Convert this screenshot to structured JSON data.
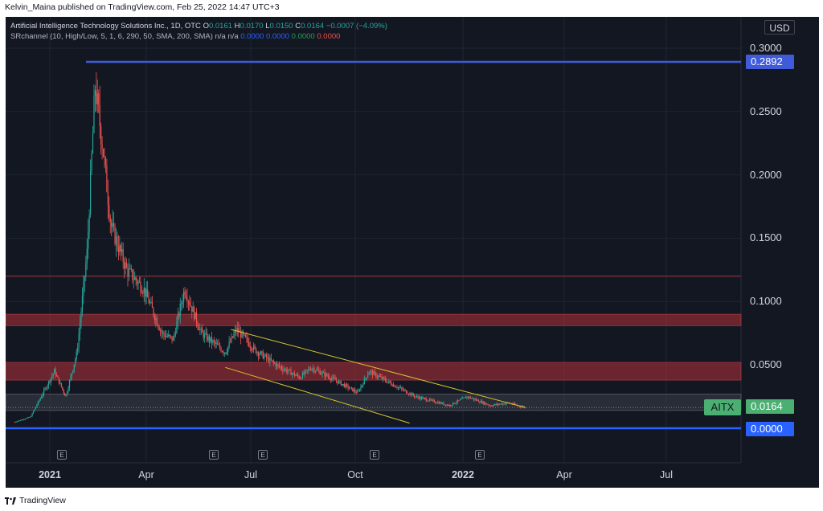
{
  "byline": "Kelvin_Maina published on TradingView.com, Feb 25, 2022 14:47 UTC+3",
  "legend": {
    "symbol": "Artificial Intelligence Technology Solutions Inc., 1D, OTC",
    "open_label": "O",
    "open": "0.0161",
    "high_label": "H",
    "high": "0.0170",
    "low_label": "L",
    "low": "0.0150",
    "close_label": "C",
    "close": "0.0164",
    "change": "−0.0007 (−4.09%)",
    "indicator": "SRchannel (10, High/Low, 5, 1, 6, 290, 50, SMA, 200, SMA)",
    "indicator_na1": "n/a",
    "indicator_na2": "n/a",
    "indicator_v1": "0.0000",
    "indicator_v2": "0.0000",
    "indicator_v3": "0.0000",
    "indicator_v4": "0.0000"
  },
  "currency": "USD",
  "ticker": "AITX",
  "price_labels": {
    "top_level": "0.2892",
    "last_price": "0.0164",
    "bottom_level": "0.0000"
  },
  "colors": {
    "background": "#131722",
    "up": "#26a69a",
    "down": "#ef5350",
    "level_line": "#3f5bd9",
    "zone_red": "#b2323a",
    "trend_line": "#d4c22c",
    "ticker_badge": "#4caf72"
  },
  "footer": {
    "brand": "TradingView",
    "logo_icon": "tradingview-logo-icon"
  },
  "chart_data": {
    "type": "candlestick",
    "title": "Artificial Intelligence Technology Solutions Inc., 1D, OTC",
    "ylabel": "USD",
    "ylim": [
      -0.02,
      0.31
    ],
    "y_ticks": [
      "0.3000",
      "0.2500",
      "0.2000",
      "0.1500",
      "0.1000",
      "0.0500"
    ],
    "x_ticks": [
      {
        "label": "2021",
        "bold": true
      },
      {
        "label": "Apr",
        "bold": false
      },
      {
        "label": "Jul",
        "bold": false
      },
      {
        "label": "Oct",
        "bold": false
      },
      {
        "label": "2022",
        "bold": true
      },
      {
        "label": "Apr",
        "bold": false
      },
      {
        "label": "Jul",
        "bold": false
      }
    ],
    "event_markers": [
      "E",
      "E",
      "E",
      "E",
      "E"
    ],
    "grid": true,
    "horizontal_levels": [
      0.2892,
      0.0
    ],
    "resistance_line": 0.12,
    "zones": [
      {
        "from": 0.081,
        "to": 0.09
      },
      {
        "from": 0.038,
        "to": 0.052
      },
      {
        "from": 0.014,
        "to": 0.027
      }
    ],
    "price_path": [
      {
        "date": "2020-12-01",
        "close": 0.005
      },
      {
        "date": "2020-12-15",
        "close": 0.009
      },
      {
        "date": "2021-01-05",
        "close": 0.045
      },
      {
        "date": "2021-01-15",
        "close": 0.025
      },
      {
        "date": "2021-01-25",
        "close": 0.06
      },
      {
        "date": "2021-02-03",
        "close": 0.14
      },
      {
        "date": "2021-02-10",
        "close": 0.27
      },
      {
        "date": "2021-02-17",
        "close": 0.22
      },
      {
        "date": "2021-02-24",
        "close": 0.16
      },
      {
        "date": "2021-03-10",
        "close": 0.125
      },
      {
        "date": "2021-03-25",
        "close": 0.11
      },
      {
        "date": "2021-04-10",
        "close": 0.075
      },
      {
        "date": "2021-04-20",
        "close": 0.07
      },
      {
        "date": "2021-04-30",
        "close": 0.11
      },
      {
        "date": "2021-05-15",
        "close": 0.075
      },
      {
        "date": "2021-06-05",
        "close": 0.06
      },
      {
        "date": "2021-06-15",
        "close": 0.078
      },
      {
        "date": "2021-07-01",
        "close": 0.062
      },
      {
        "date": "2021-07-20",
        "close": 0.05
      },
      {
        "date": "2021-08-10",
        "close": 0.04
      },
      {
        "date": "2021-08-20",
        "close": 0.048
      },
      {
        "date": "2021-09-10",
        "close": 0.038
      },
      {
        "date": "2021-09-30",
        "close": 0.028
      },
      {
        "date": "2021-10-10",
        "close": 0.045
      },
      {
        "date": "2021-10-30",
        "close": 0.035
      },
      {
        "date": "2021-11-20",
        "close": 0.025
      },
      {
        "date": "2021-12-20",
        "close": 0.018
      },
      {
        "date": "2022-01-05",
        "close": 0.025
      },
      {
        "date": "2022-01-25",
        "close": 0.018
      },
      {
        "date": "2022-02-10",
        "close": 0.02
      },
      {
        "date": "2022-02-25",
        "close": 0.0164
      }
    ],
    "trend_channel": {
      "upper": [
        {
          "date": "2021-06-10",
          "value": 0.078
        },
        {
          "date": "2022-02-25",
          "value": 0.0164
        }
      ],
      "lower": [
        {
          "date": "2021-06-05",
          "value": 0.048
        },
        {
          "date": "2021-11-15",
          "value": 0.004
        }
      ]
    }
  }
}
